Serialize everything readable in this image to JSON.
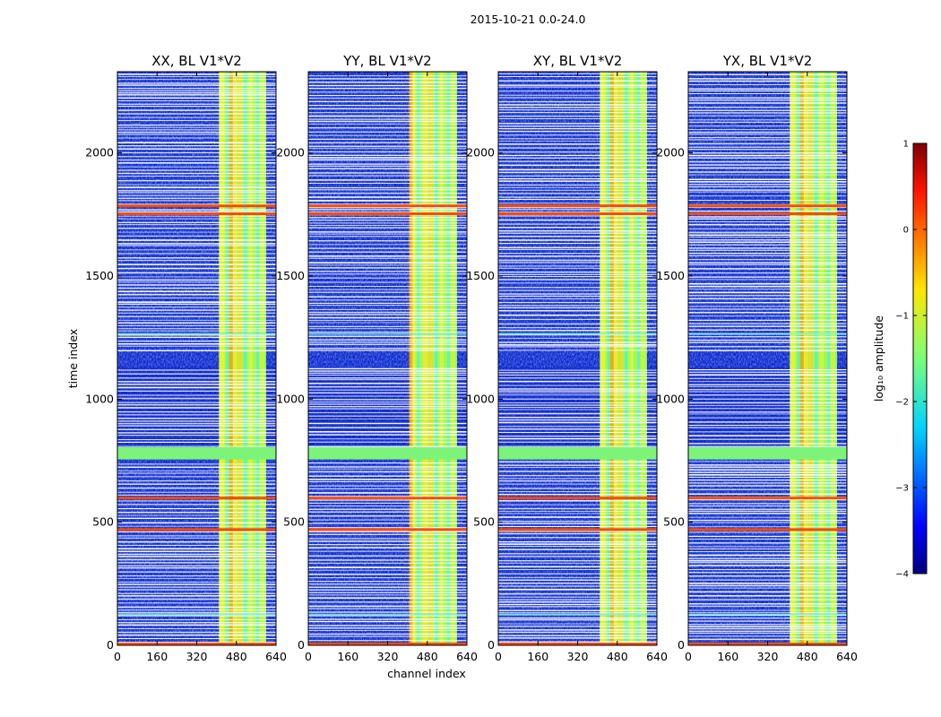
{
  "figure": {
    "suptitle": "2015-10-21 0.0-24.0"
  },
  "chart_data": {
    "type": "heatmap",
    "title": "2015-10-21 0.0-24.0",
    "xlabel": "channel index",
    "ylabel": "time index",
    "xlim": [
      0,
      640
    ],
    "ylim": [
      0,
      2330
    ],
    "x_ticks": [
      0,
      160,
      320,
      480,
      640
    ],
    "y_ticks": [
      0,
      500,
      1000,
      1500,
      2000
    ],
    "panels": [
      {
        "title": "XX, BL V1*V2"
      },
      {
        "title": "YY, BL V1*V2"
      },
      {
        "title": "XY, BL V1*V2"
      },
      {
        "title": "YX, BL V1*V2"
      }
    ],
    "colorbar": {
      "label": "log₁₀ amplitude",
      "range": [
        -4,
        1
      ],
      "ticks": [
        "1",
        "0",
        "−1",
        "−2",
        "−3",
        "−4"
      ],
      "colormap": "jet"
    },
    "features": {
      "rfi_channel_band": [
        410,
        600
      ],
      "flagged_time_band": [
        755,
        805
      ],
      "high_amplitude_rows": [
        5,
        470,
        598,
        1753,
        1785
      ],
      "dense_flag_row_bands": [
        [
          0,
          750
        ],
        [
          810,
          1130
        ],
        [
          1200,
          2330
        ]
      ]
    }
  },
  "colors": {
    "background": "#ffffff",
    "low": "#0a2fd6",
    "mid": "#7cf47a",
    "high": "#ff7a00",
    "peak": "#800000"
  }
}
